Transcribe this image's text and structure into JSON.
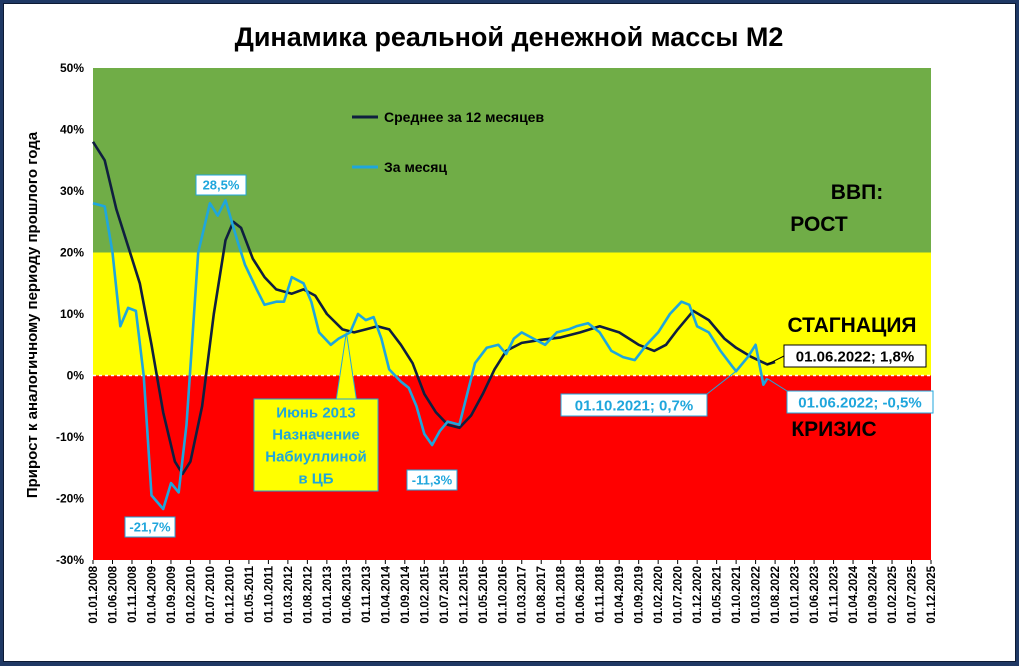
{
  "chart_data": {
    "type": "line",
    "title": "Динамика реальной денежной массы М2",
    "ylabel": "Прирост к аналогичному периоду прошлого года",
    "ylim": [
      -30,
      50
    ],
    "y_ticks": [
      "-30%",
      "-20%",
      "-10%",
      "0%",
      "10%",
      "20%",
      "30%",
      "40%",
      "50%"
    ],
    "x_range": [
      "2008-01-01",
      "2025-12-01"
    ],
    "x_ticks": [
      "01.01.2008",
      "01.06.2008",
      "01.11.2008",
      "01.04.2009",
      "01.09.2009",
      "01.02.2010",
      "01.07.2010",
      "01.12.2010",
      "01.05.2011",
      "01.10.2011",
      "01.03.2012",
      "01.08.2012",
      "01.01.2013",
      "01.06.2013",
      "01.11.2013",
      "01.04.2014",
      "01.09.2014",
      "01.02.2015",
      "01.07.2015",
      "01.12.2015",
      "01.05.2016",
      "01.10.2016",
      "01.03.2017",
      "01.08.2017",
      "01.01.2018",
      "01.06.2018",
      "01.11.2018",
      "01.04.2019",
      "01.09.2019",
      "01.02.2020",
      "01.07.2020",
      "01.12.2020",
      "01.05.2021",
      "01.10.2021",
      "01.03.2022",
      "01.08.2022",
      "01.01.2023",
      "01.06.2023",
      "01.11.2023",
      "01.04.2024",
      "01.09.2024",
      "01.02.2025",
      "01.07.2025",
      "01.12.2025"
    ],
    "zones": [
      {
        "from": 20,
        "to": 50,
        "color": "#70ad47"
      },
      {
        "from": 0,
        "to": 20,
        "color": "#ffff00"
      },
      {
        "from": -30,
        "to": 0,
        "color": "#ff0000"
      }
    ],
    "zone_labels": [
      "ВВП:",
      "РОСТ",
      "СТАГНАЦИЯ",
      "КРИЗИС"
    ],
    "legend": {
      "placement": "top-left"
    },
    "series": [
      {
        "name": "Среднее за 12 месяцев",
        "color": "#0f1f3f",
        "points": [
          [
            "2008-01",
            38
          ],
          [
            "2008-04",
            35
          ],
          [
            "2008-07",
            27
          ],
          [
            "2008-10",
            21
          ],
          [
            "2009-01",
            15
          ],
          [
            "2009-04",
            5
          ],
          [
            "2009-07",
            -6
          ],
          [
            "2009-10",
            -14
          ],
          [
            "2009-12",
            -16
          ],
          [
            "2010-02",
            -14
          ],
          [
            "2010-05",
            -5
          ],
          [
            "2010-08",
            10
          ],
          [
            "2010-11",
            22
          ],
          [
            "2011-01",
            25
          ],
          [
            "2011-03",
            24
          ],
          [
            "2011-06",
            19
          ],
          [
            "2011-09",
            16
          ],
          [
            "2011-12",
            14
          ],
          [
            "2012-04",
            13.3
          ],
          [
            "2012-07",
            14
          ],
          [
            "2012-10",
            13
          ],
          [
            "2013-01",
            10
          ],
          [
            "2013-05",
            7.5
          ],
          [
            "2013-08",
            7
          ],
          [
            "2013-11",
            7.5
          ],
          [
            "2014-02",
            8
          ],
          [
            "2014-05",
            7.5
          ],
          [
            "2014-08",
            5
          ],
          [
            "2014-11",
            2
          ],
          [
            "2015-02",
            -3
          ],
          [
            "2015-05",
            -6
          ],
          [
            "2015-08",
            -8
          ],
          [
            "2015-11",
            -8.5
          ],
          [
            "2016-02",
            -6.5
          ],
          [
            "2016-05",
            -3
          ],
          [
            "2016-08",
            1
          ],
          [
            "2016-11",
            4
          ],
          [
            "2017-03",
            5.3
          ],
          [
            "2017-08",
            5.8
          ],
          [
            "2018-01",
            6.2
          ],
          [
            "2018-06",
            7
          ],
          [
            "2018-11",
            8
          ],
          [
            "2019-04",
            7
          ],
          [
            "2019-09",
            5
          ],
          [
            "2020-01",
            4
          ],
          [
            "2020-04",
            5
          ],
          [
            "2020-07",
            7.5
          ],
          [
            "2020-11",
            10.5
          ],
          [
            "2021-03",
            9
          ],
          [
            "2021-07",
            6
          ],
          [
            "2021-10",
            4.5
          ],
          [
            "2022-02",
            3
          ],
          [
            "2022-06",
            1.8
          ],
          [
            "2022-08",
            2.2
          ]
        ]
      },
      {
        "name": "За месяц",
        "color": "#1fa6dc",
        "points": [
          [
            "2008-01",
            28
          ],
          [
            "2008-04",
            27.5
          ],
          [
            "2008-06",
            20
          ],
          [
            "2008-08",
            8
          ],
          [
            "2008-10",
            11
          ],
          [
            "2008-12",
            10.5
          ],
          [
            "2009-02",
            0
          ],
          [
            "2009-04",
            -19.5
          ],
          [
            "2009-07",
            -21.7
          ],
          [
            "2009-09",
            -17.5
          ],
          [
            "2009-11",
            -19
          ],
          [
            "2010-01",
            -8
          ],
          [
            "2010-04",
            20
          ],
          [
            "2010-07",
            28
          ],
          [
            "2010-09",
            26
          ],
          [
            "2010-11",
            28.5
          ],
          [
            "2011-02",
            22
          ],
          [
            "2011-04",
            18
          ],
          [
            "2011-07",
            14
          ],
          [
            "2011-09",
            11.5
          ],
          [
            "2011-12",
            12
          ],
          [
            "2012-02",
            12
          ],
          [
            "2012-04",
            16
          ],
          [
            "2012-07",
            15
          ],
          [
            "2012-09",
            12
          ],
          [
            "2012-11",
            7
          ],
          [
            "2013-02",
            5
          ],
          [
            "2013-04",
            6
          ],
          [
            "2013-07",
            7
          ],
          [
            "2013-09",
            10
          ],
          [
            "2013-11",
            9
          ],
          [
            "2014-01",
            9.5
          ],
          [
            "2014-03",
            6
          ],
          [
            "2014-05",
            1
          ],
          [
            "2014-08",
            -1
          ],
          [
            "2014-10",
            -2
          ],
          [
            "2014-12",
            -5
          ],
          [
            "2015-02",
            -9.5
          ],
          [
            "2015-04",
            -11.3
          ],
          [
            "2015-06",
            -9
          ],
          [
            "2015-08",
            -7.5
          ],
          [
            "2015-11",
            -8
          ],
          [
            "2016-01",
            -3
          ],
          [
            "2016-03",
            2
          ],
          [
            "2016-06",
            4.5
          ],
          [
            "2016-09",
            5
          ],
          [
            "2016-11",
            3.5
          ],
          [
            "2017-01",
            6
          ],
          [
            "2017-03",
            7
          ],
          [
            "2017-06",
            6
          ],
          [
            "2017-09",
            5
          ],
          [
            "2017-12",
            7
          ],
          [
            "2018-03",
            7.5
          ],
          [
            "2018-05",
            8
          ],
          [
            "2018-08",
            8.5
          ],
          [
            "2018-11",
            7
          ],
          [
            "2019-02",
            4
          ],
          [
            "2019-05",
            3
          ],
          [
            "2019-08",
            2.5
          ],
          [
            "2019-11",
            5
          ],
          [
            "2020-02",
            7
          ],
          [
            "2020-05",
            10
          ],
          [
            "2020-08",
            12
          ],
          [
            "2020-10",
            11.5
          ],
          [
            "2020-12",
            8
          ],
          [
            "2021-03",
            7
          ],
          [
            "2021-06",
            4
          ],
          [
            "2021-09",
            1.5
          ],
          [
            "2021-10",
            0.7
          ],
          [
            "2022-01",
            3
          ],
          [
            "2022-03",
            5
          ],
          [
            "2022-05",
            -1.5
          ],
          [
            "2022-06",
            -0.5
          ]
        ]
      }
    ],
    "annotations": [
      {
        "text": "28,5%",
        "x": "2010-11",
        "y": 28.5,
        "series": "За месяц"
      },
      {
        "text": "-21,7%",
        "x": "2009-07",
        "y": -21.7,
        "series": "За месяц"
      },
      {
        "text": "-11,3%",
        "x": "2015-04",
        "y": -11.3,
        "series": "За месяц"
      },
      {
        "text": "01.10.2021; 0,7%",
        "x": "2021-10",
        "y": 0.7,
        "series": "За месяц"
      },
      {
        "text": "01.06.2022; -0,5%",
        "x": "2022-06",
        "y": -0.5,
        "series": "За месяц"
      },
      {
        "text": "01.06.2022; 1,8%",
        "x": "2022-06",
        "y": 1.8,
        "series": "Среднее за 12 месяцев"
      },
      {
        "text": "Июнь 2013\nНазначение\nНабиуллиной\nв ЦБ",
        "x": "2013-06",
        "y": 7,
        "series": "За месяц"
      }
    ]
  }
}
